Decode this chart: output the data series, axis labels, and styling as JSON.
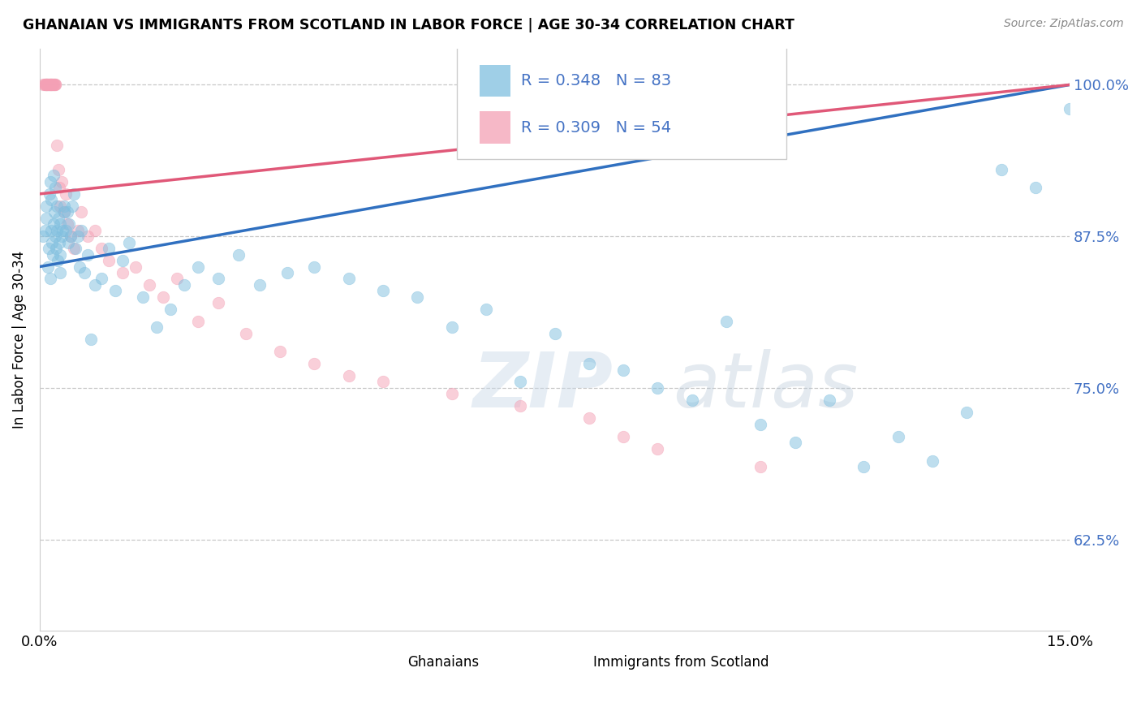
{
  "title": "GHANAIAN VS IMMIGRANTS FROM SCOTLAND IN LABOR FORCE | AGE 30-34 CORRELATION CHART",
  "source": "Source: ZipAtlas.com",
  "ylabel": "In Labor Force | Age 30-34",
  "blue_R": 0.348,
  "blue_N": 83,
  "pink_R": 0.309,
  "pink_N": 54,
  "blue_color": "#7fbfdf",
  "pink_color": "#f4a0b5",
  "blue_line_color": "#3070c0",
  "pink_line_color": "#e05878",
  "xmin": 0.0,
  "xmax": 15.0,
  "ymin": 55.0,
  "ymax": 103.0,
  "yticks": [
    62.5,
    75.0,
    87.5,
    100.0
  ],
  "ytick_labels": [
    "62.5%",
    "75.0%",
    "87.5%",
    "100.0%"
  ],
  "blue_x": [
    0.05,
    0.08,
    0.1,
    0.1,
    0.12,
    0.13,
    0.14,
    0.15,
    0.15,
    0.16,
    0.17,
    0.18,
    0.19,
    0.2,
    0.2,
    0.21,
    0.22,
    0.23,
    0.24,
    0.25,
    0.25,
    0.26,
    0.27,
    0.28,
    0.29,
    0.3,
    0.3,
    0.32,
    0.33,
    0.35,
    0.36,
    0.38,
    0.4,
    0.41,
    0.43,
    0.45,
    0.47,
    0.5,
    0.52,
    0.55,
    0.58,
    0.6,
    0.65,
    0.7,
    0.75,
    0.8,
    0.9,
    1.0,
    1.1,
    1.2,
    1.3,
    1.5,
    1.7,
    1.9,
    2.1,
    2.3,
    2.6,
    2.9,
    3.2,
    3.6,
    4.0,
    4.5,
    5.0,
    5.5,
    6.0,
    6.5,
    7.0,
    7.5,
    8.0,
    8.5,
    9.0,
    9.5,
    10.0,
    10.5,
    11.0,
    11.5,
    12.0,
    12.5,
    13.0,
    13.5,
    14.0,
    14.5,
    15.0
  ],
  "blue_y": [
    87.5,
    88.0,
    89.0,
    90.0,
    85.0,
    86.5,
    91.0,
    92.0,
    84.0,
    88.0,
    90.5,
    87.0,
    86.0,
    88.5,
    92.5,
    89.5,
    91.5,
    87.5,
    86.5,
    90.0,
    88.0,
    85.5,
    89.0,
    87.0,
    86.0,
    88.5,
    84.5,
    87.5,
    88.0,
    89.5,
    90.0,
    88.0,
    89.5,
    87.0,
    88.5,
    87.5,
    90.0,
    91.0,
    86.5,
    87.5,
    85.0,
    88.0,
    84.5,
    86.0,
    79.0,
    83.5,
    84.0,
    86.5,
    83.0,
    85.5,
    87.0,
    82.5,
    80.0,
    81.5,
    83.5,
    85.0,
    84.0,
    86.0,
    83.5,
    84.5,
    85.0,
    84.0,
    83.0,
    82.5,
    80.0,
    81.5,
    75.5,
    79.5,
    77.0,
    76.5,
    75.0,
    74.0,
    80.5,
    72.0,
    70.5,
    74.0,
    68.5,
    71.0,
    69.0,
    73.0,
    93.0,
    91.5,
    98.0
  ],
  "pink_x": [
    0.05,
    0.07,
    0.08,
    0.09,
    0.1,
    0.1,
    0.11,
    0.12,
    0.13,
    0.14,
    0.15,
    0.15,
    0.16,
    0.17,
    0.18,
    0.19,
    0.2,
    0.21,
    0.22,
    0.23,
    0.25,
    0.27,
    0.28,
    0.3,
    0.32,
    0.35,
    0.38,
    0.4,
    0.45,
    0.5,
    0.55,
    0.6,
    0.7,
    0.8,
    0.9,
    1.0,
    1.2,
    1.4,
    1.6,
    1.8,
    2.0,
    2.3,
    2.6,
    3.0,
    3.5,
    4.0,
    4.5,
    5.0,
    6.0,
    7.0,
    8.0,
    8.5,
    9.0,
    10.5
  ],
  "pink_y": [
    100.0,
    100.0,
    100.0,
    100.0,
    100.0,
    100.0,
    100.0,
    100.0,
    100.0,
    100.0,
    100.0,
    100.0,
    100.0,
    100.0,
    100.0,
    100.0,
    100.0,
    100.0,
    100.0,
    100.0,
    95.0,
    93.0,
    91.5,
    90.0,
    92.0,
    89.5,
    91.0,
    88.5,
    87.5,
    86.5,
    88.0,
    89.5,
    87.5,
    88.0,
    86.5,
    85.5,
    84.5,
    85.0,
    83.5,
    82.5,
    84.0,
    80.5,
    82.0,
    79.5,
    78.0,
    77.0,
    76.0,
    75.5,
    74.5,
    73.5,
    72.5,
    71.0,
    70.0,
    68.5
  ]
}
